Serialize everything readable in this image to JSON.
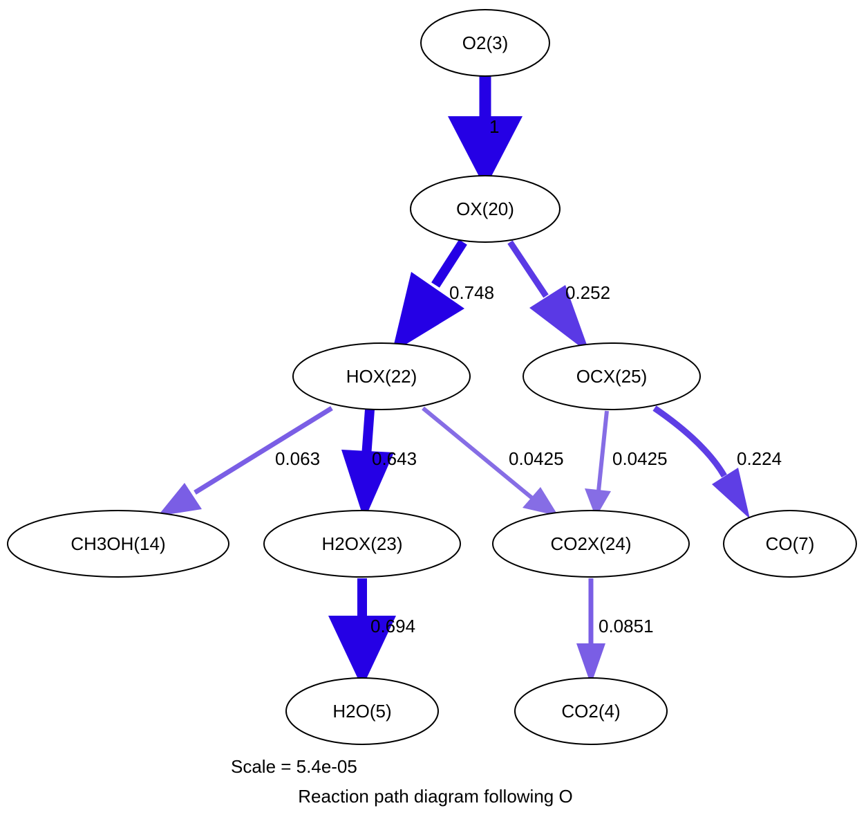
{
  "diagram": {
    "caption_scale": "Scale = 5.4e-05",
    "caption_title": "Reaction path diagram following O",
    "nodes": {
      "o2": "O2(3)",
      "ox": "OX(20)",
      "hox": "HOX(22)",
      "ocx": "OCX(25)",
      "ch3oh": "CH3OH(14)",
      "h2ox": "H2OX(23)",
      "co2x": "CO2X(24)",
      "co": "CO(7)",
      "h2o": "H2O(5)",
      "co2": "CO2(4)"
    },
    "edges": [
      {
        "from": "O2(3)",
        "to": "OX(20)",
        "label": "1",
        "color": "#2500e5"
      },
      {
        "from": "OX(20)",
        "to": "HOX(22)",
        "label": "0.748",
        "color": "#2500e5"
      },
      {
        "from": "OX(20)",
        "to": "OCX(25)",
        "label": "0.252",
        "color": "#5a39e5"
      },
      {
        "from": "HOX(22)",
        "to": "CH3OH(14)",
        "label": "0.063",
        "color": "#7a5ee5"
      },
      {
        "from": "HOX(22)",
        "to": "H2OX(23)",
        "label": "0.643",
        "color": "#2500e5"
      },
      {
        "from": "HOX(22)",
        "to": "CO2X(24)",
        "label": "0.0425",
        "color": "#866de5"
      },
      {
        "from": "OCX(25)",
        "to": "CO2X(24)",
        "label": "0.0425",
        "color": "#866de5"
      },
      {
        "from": "OCX(25)",
        "to": "CO(7)",
        "label": "0.224",
        "color": "#5e3ee5"
      },
      {
        "from": "H2OX(23)",
        "to": "H2O(5)",
        "label": "0.694",
        "color": "#2500e5"
      },
      {
        "from": "CO2X(24)",
        "to": "CO2(4)",
        "label": "0.0851",
        "color": "#7a5ee5"
      }
    ]
  }
}
